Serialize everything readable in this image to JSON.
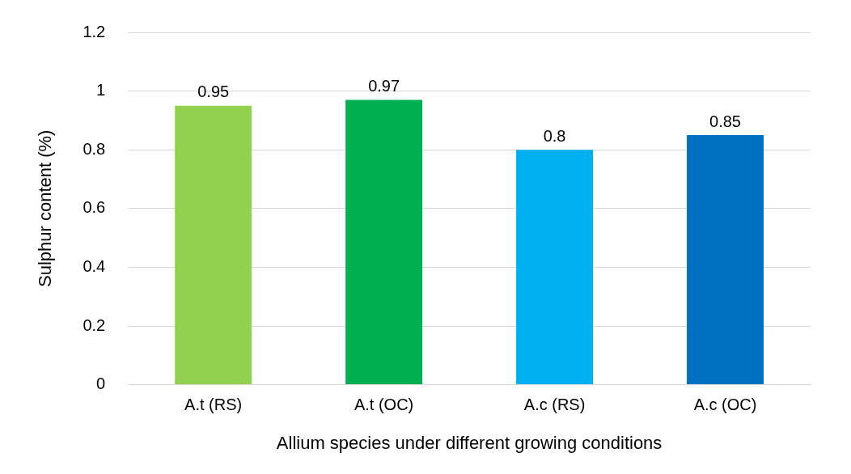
{
  "chart_data": {
    "type": "bar",
    "xlabel": "Allium species under different growing conditions",
    "ylabel": "Sulphur content (%)",
    "categories": [
      "A.t (RS)",
      "A.t (OC)",
      "A.c (RS)",
      "A.c (OC)"
    ],
    "values": [
      0.95,
      0.97,
      0.8,
      0.85
    ],
    "colors": [
      "#92d050",
      "#00b050",
      "#00b0f0",
      "#0070c0"
    ],
    "ylim": [
      0,
      1.2
    ],
    "yticks": [
      0,
      0.2,
      0.4,
      0.6,
      0.8,
      1,
      1.2
    ],
    "grid": "y",
    "data_labels": true,
    "legend": false
  }
}
